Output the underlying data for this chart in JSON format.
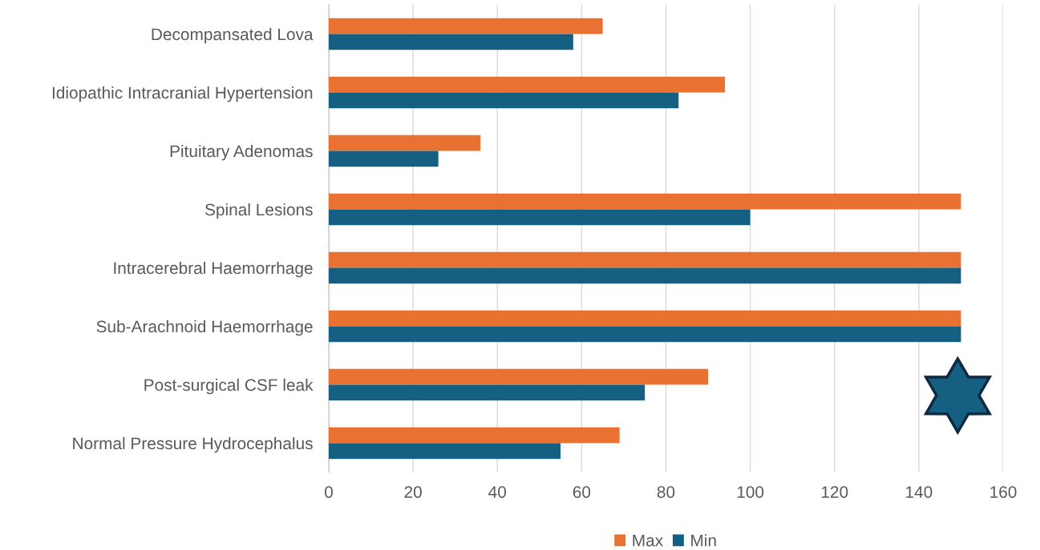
{
  "chart_data": {
    "type": "bar",
    "orientation": "horizontal",
    "categories": [
      "Decompansated Lova",
      "Idiopathic Intracranial Hypertension",
      "Pituitary Adenomas",
      "Spinal Lesions",
      "Intracerebral Haemorrhage",
      "Sub-Arachnoid Haemorrhage",
      "Post-surgical CSF leak",
      "Normal Pressure Hydrocephalus"
    ],
    "series": [
      {
        "name": "Max",
        "color": "#e97132",
        "values": [
          65,
          94,
          36,
          150,
          150,
          150,
          90,
          69
        ]
      },
      {
        "name": "Min",
        "color": "#156082",
        "values": [
          58,
          83,
          26,
          100,
          150,
          150,
          75,
          55
        ]
      }
    ],
    "xlim": [
      0,
      160
    ],
    "xticks": [
      0,
      20,
      40,
      60,
      80,
      100,
      120,
      140,
      160
    ],
    "grid": "x",
    "legend": "bottom"
  }
}
